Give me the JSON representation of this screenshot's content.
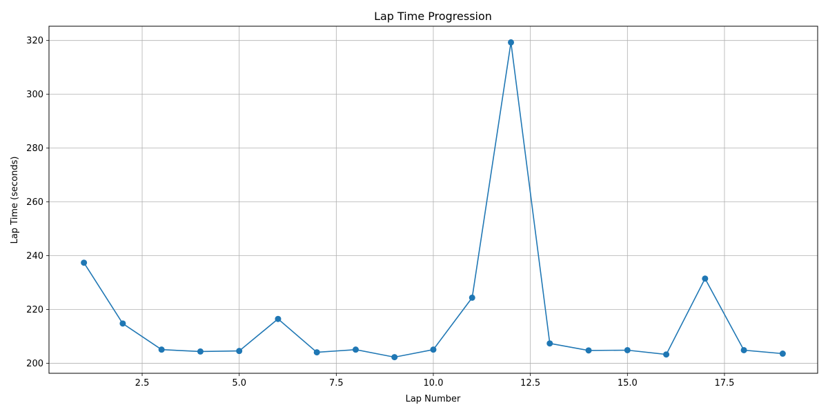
{
  "chart_data": {
    "type": "line",
    "title": "Lap Time Progression",
    "xlabel": "Lap Number",
    "ylabel": "Lap Time (seconds)",
    "xlim": [
      0.1,
      19.9
    ],
    "ylim": [
      196.3,
      325.3
    ],
    "xticks": [
      2.5,
      5.0,
      7.5,
      10.0,
      12.5,
      15.0,
      17.5
    ],
    "xtick_labels": [
      "2.5",
      "5.0",
      "7.5",
      "10.0",
      "12.5",
      "15.0",
      "17.5"
    ],
    "yticks": [
      200,
      220,
      240,
      260,
      280,
      300,
      320
    ],
    "ytick_labels": [
      "200",
      "220",
      "240",
      "260",
      "280",
      "300",
      "320"
    ],
    "grid": true,
    "series": [
      {
        "color": "#1f77b4",
        "marker": "circle",
        "x": [
          1,
          2,
          3,
          4,
          5,
          6,
          7,
          8,
          9,
          10,
          11,
          12,
          13,
          14,
          15,
          16,
          17,
          18,
          19
        ],
        "y": [
          237.4,
          214.8,
          205.1,
          204.4,
          204.6,
          216.5,
          204.1,
          205.1,
          202.3,
          205.1,
          224.4,
          319.3,
          207.4,
          204.8,
          204.9,
          203.3,
          231.5,
          204.9,
          203.6
        ]
      }
    ]
  }
}
